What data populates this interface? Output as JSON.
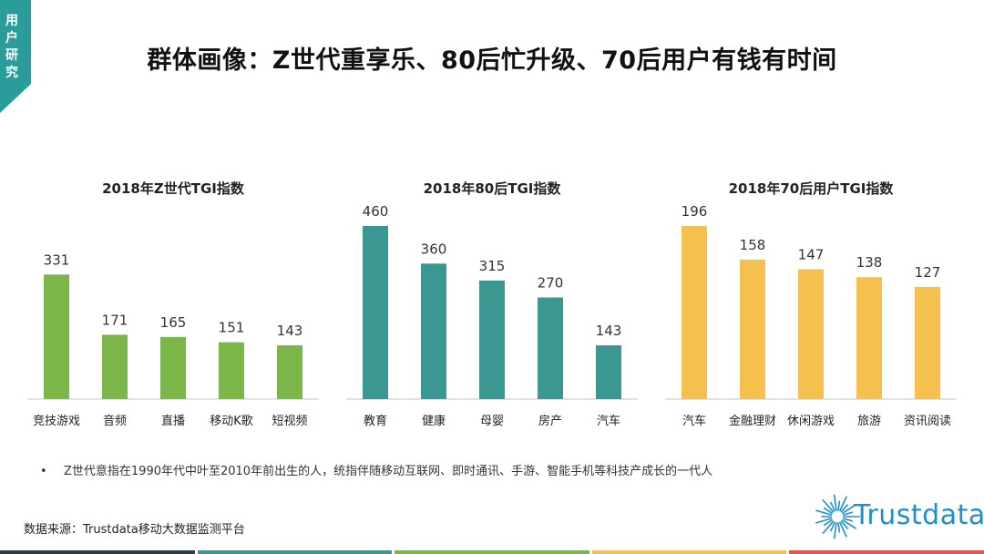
{
  "header": {
    "tab_label": "用户研究",
    "title": "群体画像：Z世代重享乐、80后忙升级、70后用户有钱有时间"
  },
  "colors": {
    "tab": "#2a9d9b",
    "green": "#7ab648",
    "teal": "#3a9792",
    "yellow": "#f5c04e",
    "axis": "#d8d8d8",
    "logo": "#1f8fc9",
    "bottom_bar": [
      "#2f3b4a",
      "#3a9792",
      "#7ab648",
      "#f5c04e",
      "#e8534f"
    ]
  },
  "chart_data": [
    {
      "type": "bar",
      "title": "2018年Z世代TGI指数",
      "categories": [
        "竞技游戏",
        "音频",
        "直播",
        "移动K歌",
        "短视频"
      ],
      "values": [
        331,
        171,
        165,
        151,
        143
      ],
      "color": "green",
      "ylim": [
        0,
        460
      ]
    },
    {
      "type": "bar",
      "title": "2018年80后TGI指数",
      "categories": [
        "教育",
        "健康",
        "母婴",
        "房产",
        "汽车"
      ],
      "values": [
        460,
        360,
        315,
        270,
        143
      ],
      "color": "teal",
      "ylim": [
        0,
        460
      ]
    },
    {
      "type": "bar",
      "title": "2018年70后用户TGI指数",
      "categories": [
        "汽车",
        "金融理财",
        "休闲游戏",
        "旅游",
        "资讯阅读"
      ],
      "values": [
        196,
        158,
        147,
        138,
        127
      ],
      "color": "yellow",
      "ylim": [
        0,
        196
      ]
    }
  ],
  "footnote": {
    "bullet": "•",
    "text": "Z世代意指在1990年代中叶至2010年前出生的人，统指伴随移动互联网、即时通讯、手游、智能手机等科技产成长的一代人"
  },
  "source": "数据来源：Trustdata移动大数据监测平台",
  "logo": {
    "text": "Trustdata",
    "icon": "sunburst-icon"
  }
}
